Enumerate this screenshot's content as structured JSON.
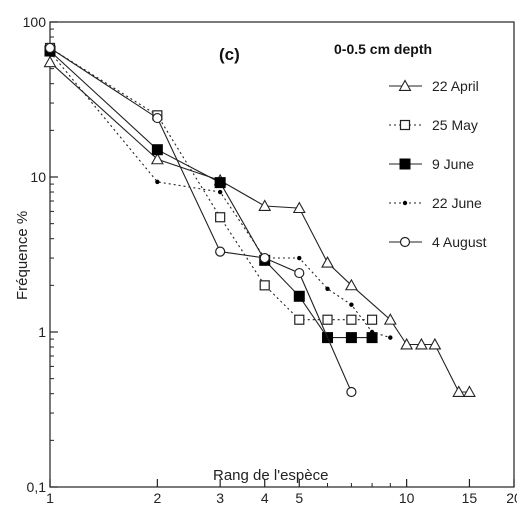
{
  "chart_data": {
    "type": "line",
    "panel_label": "(c)",
    "heading": "0-0.5 cm depth",
    "xlabel": "Rang de l'espèce",
    "ylabel": "Fréquence %",
    "x_scale": "log",
    "y_scale": "log",
    "xlim": [
      1,
      20
    ],
    "ylim": [
      0.1,
      100
    ],
    "x_ticks": [
      1,
      2,
      3,
      4,
      5,
      10,
      15,
      20
    ],
    "x_tick_labels": [
      "1",
      "2",
      "3",
      "4",
      "5",
      "10",
      "15",
      "20"
    ],
    "y_ticks": [
      0.1,
      1,
      10,
      100
    ],
    "y_tick_labels": [
      "0,1",
      "1",
      "10",
      "100"
    ],
    "grid": false,
    "legend_position": "top-right",
    "series": [
      {
        "name": "22 April",
        "marker": "triangle-open",
        "line": "solid",
        "x": [
          1,
          2,
          3,
          4,
          5,
          6,
          7,
          9,
          10,
          11,
          12,
          14,
          15
        ],
        "y": [
          55,
          13,
          9.5,
          6.5,
          6.3,
          2.8,
          2.0,
          1.2,
          0.83,
          0.83,
          0.83,
          0.41,
          0.41
        ]
      },
      {
        "name": "25 May",
        "marker": "square-open",
        "line": "dotted",
        "x": [
          1,
          2,
          3,
          4,
          5,
          6,
          7,
          8
        ],
        "y": [
          68,
          25,
          5.5,
          2.0,
          1.2,
          1.2,
          1.2,
          1.2
        ]
      },
      {
        "name": "9 June",
        "marker": "square-filled",
        "line": "solid",
        "x": [
          1,
          2,
          3,
          4,
          5,
          6,
          7,
          8
        ],
        "y": [
          65,
          15,
          9.2,
          2.9,
          1.7,
          0.92,
          0.92,
          0.92
        ]
      },
      {
        "name": "22 June",
        "marker": "dot",
        "line": "dotted",
        "x": [
          1,
          2,
          3,
          4,
          5,
          6,
          7,
          8,
          9
        ],
        "y": [
          64,
          9.3,
          8.0,
          3.0,
          3.0,
          1.9,
          1.5,
          1.0,
          0.92
        ]
      },
      {
        "name": "4 August",
        "marker": "circle-open",
        "line": "solid",
        "x": [
          1,
          2,
          3,
          4,
          5,
          7
        ],
        "y": [
          68,
          24,
          3.3,
          3.0,
          2.4,
          0.41
        ]
      }
    ]
  }
}
